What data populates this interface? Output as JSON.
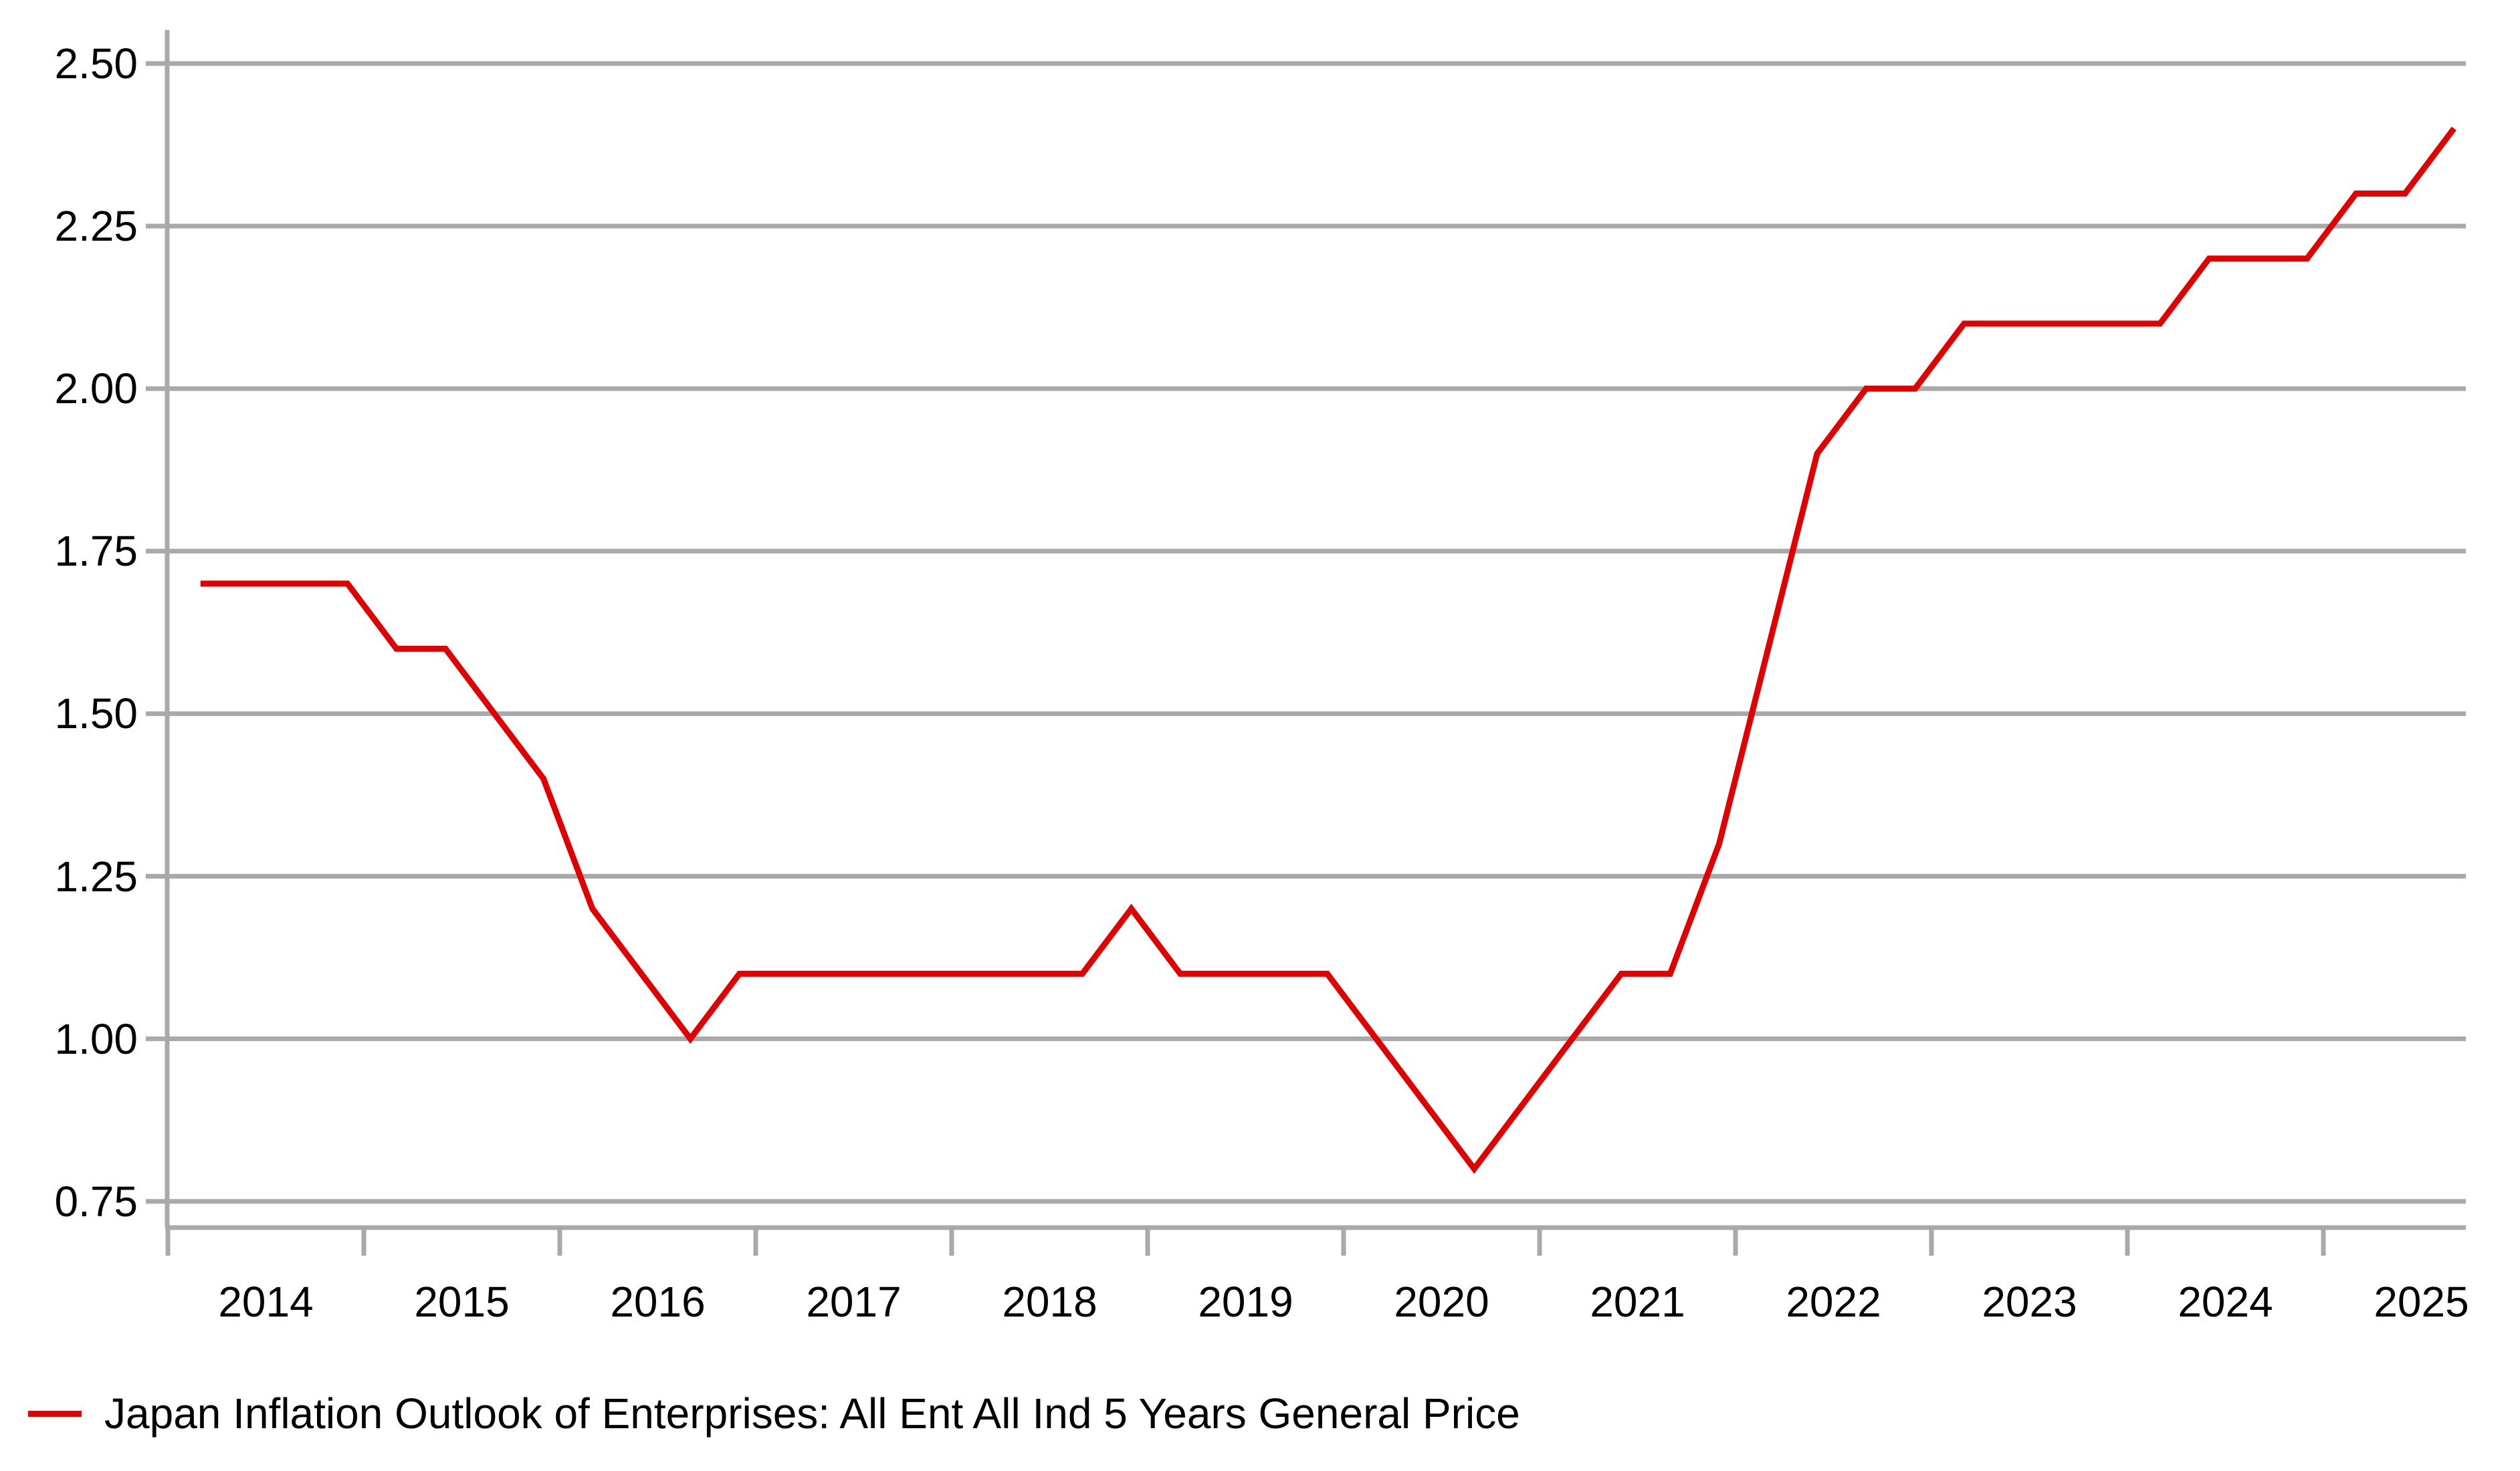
{
  "legend": {
    "label": "Japan Inflation Outlook of Enterprises: All Ent All Ind 5 Years General Price"
  },
  "colors": {
    "line": "#e10000",
    "grid": "#a9a9a9",
    "axis": "#a9a9a9",
    "text": "#000000"
  },
  "chart_data": {
    "type": "line",
    "title": "",
    "xlabel": "",
    "ylabel": "",
    "grid": true,
    "legend_position": "bottom-left",
    "ylim": [
      0.75,
      2.5
    ],
    "y_axis": {
      "ticks": [
        {
          "label": "2.50",
          "value": 2.5
        },
        {
          "label": "2.25",
          "value": 2.25
        },
        {
          "label": "2.00",
          "value": 2.0
        },
        {
          "label": "1.75",
          "value": 1.75
        },
        {
          "label": "1.50",
          "value": 1.5
        },
        {
          "label": "1.25",
          "value": 1.25
        },
        {
          "label": "1.00",
          "value": 1.0
        },
        {
          "label": "0.75",
          "value": 0.75
        }
      ]
    },
    "x_axis": {
      "tick_years": [
        2014,
        2015,
        2016,
        2017,
        2018,
        2019,
        2020,
        2021,
        2022,
        2023,
        2024,
        2025
      ],
      "labels": [
        "2014",
        "2015",
        "2016",
        "2017",
        "2018",
        "2019",
        "2020",
        "2021",
        "2022",
        "2023",
        "2024",
        "2025"
      ]
    },
    "series": [
      {
        "name": "Japan Inflation Outlook of Enterprises: All Ent All Ind 5 Years General Price",
        "color": "#e10000",
        "points": [
          {
            "date": "2014-03",
            "value": 1.7
          },
          {
            "date": "2014-06",
            "value": 1.7
          },
          {
            "date": "2014-09",
            "value": 1.7
          },
          {
            "date": "2014-12",
            "value": 1.7
          },
          {
            "date": "2015-03",
            "value": 1.6
          },
          {
            "date": "2015-06",
            "value": 1.6
          },
          {
            "date": "2015-09",
            "value": 1.5
          },
          {
            "date": "2015-12",
            "value": 1.4
          },
          {
            "date": "2016-03",
            "value": 1.2
          },
          {
            "date": "2016-06",
            "value": 1.1
          },
          {
            "date": "2016-09",
            "value": 1.0
          },
          {
            "date": "2016-12",
            "value": 1.1
          },
          {
            "date": "2017-03",
            "value": 1.1
          },
          {
            "date": "2017-06",
            "value": 1.1
          },
          {
            "date": "2017-09",
            "value": 1.1
          },
          {
            "date": "2017-12",
            "value": 1.1
          },
          {
            "date": "2018-03",
            "value": 1.1
          },
          {
            "date": "2018-06",
            "value": 1.1
          },
          {
            "date": "2018-09",
            "value": 1.1
          },
          {
            "date": "2018-12",
            "value": 1.2
          },
          {
            "date": "2019-03",
            "value": 1.1
          },
          {
            "date": "2019-06",
            "value": 1.1
          },
          {
            "date": "2019-09",
            "value": 1.1
          },
          {
            "date": "2019-12",
            "value": 1.1
          },
          {
            "date": "2020-03",
            "value": 1.0
          },
          {
            "date": "2020-06",
            "value": 0.9
          },
          {
            "date": "2020-09",
            "value": 0.8
          },
          {
            "date": "2020-12",
            "value": 0.9
          },
          {
            "date": "2021-03",
            "value": 1.0
          },
          {
            "date": "2021-06",
            "value": 1.1
          },
          {
            "date": "2021-09",
            "value": 1.1
          },
          {
            "date": "2021-12",
            "value": 1.3
          },
          {
            "date": "2022-03",
            "value": 1.6
          },
          {
            "date": "2022-06",
            "value": 1.9
          },
          {
            "date": "2022-09",
            "value": 2.0
          },
          {
            "date": "2022-12",
            "value": 2.0
          },
          {
            "date": "2023-03",
            "value": 2.1
          },
          {
            "date": "2023-06",
            "value": 2.1
          },
          {
            "date": "2023-09",
            "value": 2.1
          },
          {
            "date": "2023-12",
            "value": 2.1
          },
          {
            "date": "2024-03",
            "value": 2.1
          },
          {
            "date": "2024-06",
            "value": 2.2
          },
          {
            "date": "2024-09",
            "value": 2.2
          },
          {
            "date": "2024-12",
            "value": 2.2
          },
          {
            "date": "2025-03",
            "value": 2.3
          },
          {
            "date": "2025-06",
            "value": 2.3
          },
          {
            "date": "2025-09",
            "value": 2.4
          }
        ]
      }
    ]
  }
}
